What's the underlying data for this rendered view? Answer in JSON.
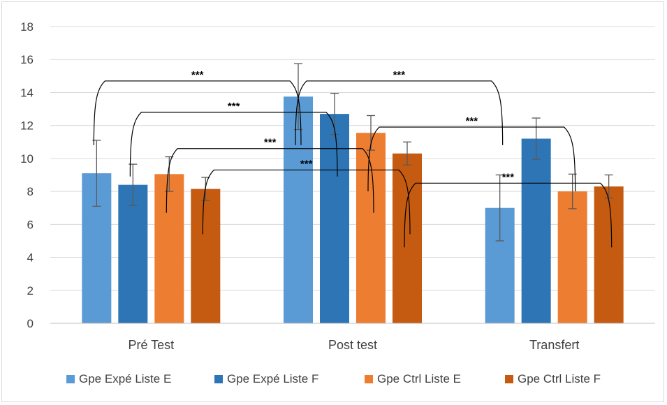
{
  "chart_data": {
    "type": "bar",
    "categories": [
      "Pré Test",
      "Post test",
      "Transfert"
    ],
    "ylim": [
      0,
      18
    ],
    "yticks": [
      0,
      2,
      4,
      6,
      8,
      10,
      12,
      14,
      16,
      18
    ],
    "grid": true,
    "legend_position": "bottom",
    "series": [
      {
        "name": "Gpe Expé Liste E",
        "color": "#5b9bd5",
        "values": [
          9.1,
          13.75,
          7.0
        ],
        "errors": [
          2.0,
          2.0,
          2.0
        ]
      },
      {
        "name": "Gpe Expé Liste F",
        "color": "#2e75b6",
        "values": [
          8.4,
          12.7,
          11.2
        ],
        "errors": [
          1.25,
          1.25,
          1.25
        ]
      },
      {
        "name": "Gpe Ctrl Liste E",
        "color": "#ed7d31",
        "values": [
          9.05,
          11.55,
          8.0
        ],
        "errors": [
          1.05,
          1.05,
          1.05
        ]
      },
      {
        "name": "Gpe Ctrl Liste F",
        "color": "#c55a11",
        "values": [
          8.15,
          10.3,
          8.3
        ],
        "errors": [
          0.7,
          0.7,
          0.7
        ]
      }
    ],
    "significance": [
      {
        "label": "***",
        "from": [
          0,
          0
        ],
        "to": [
          0,
          1
        ],
        "level": 14.7
      },
      {
        "label": "***",
        "from": [
          1,
          0
        ],
        "to": [
          1,
          1
        ],
        "level": 12.8
      },
      {
        "label": "***",
        "from": [
          2,
          0
        ],
        "to": [
          2,
          1
        ],
        "level": 10.6
      },
      {
        "label": "***",
        "from": [
          3,
          0
        ],
        "to": [
          3,
          1
        ],
        "level": 9.3
      },
      {
        "label": "***",
        "from": [
          0,
          1
        ],
        "to": [
          0,
          2
        ],
        "level": 14.7
      },
      {
        "label": "***",
        "from": [
          2,
          1
        ],
        "to": [
          2,
          2
        ],
        "level": 11.9
      },
      {
        "label": "***",
        "from": [
          3,
          1
        ],
        "to": [
          3,
          2
        ],
        "level": 8.5
      }
    ]
  }
}
